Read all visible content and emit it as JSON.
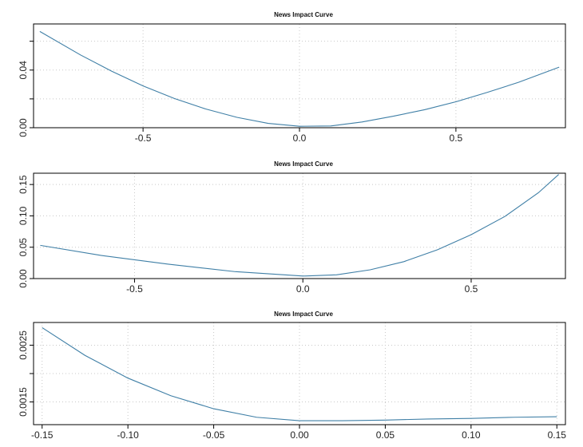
{
  "chart_data": [
    {
      "type": "line",
      "title": "News Impact Curve",
      "xlabel": "",
      "ylabel": "",
      "xlim": [
        -0.85,
        0.85
      ],
      "ylim": [
        0.0,
        0.072
      ],
      "xticks": [
        -0.5,
        0.0,
        0.5
      ],
      "xtick_labels": [
        "-0.5",
        "0.0",
        "0.5"
      ],
      "yticks": [
        0.0,
        0.02,
        0.04,
        0.06
      ],
      "ytick_labels": [
        "0.00",
        "",
        "0.04",
        ""
      ],
      "grid": true,
      "baseline": false,
      "series": [
        {
          "color": "#3f7fa6",
          "x": [
            -0.83,
            -0.7,
            -0.6,
            -0.5,
            -0.4,
            -0.3,
            -0.2,
            -0.1,
            0.0,
            0.1,
            0.2,
            0.3,
            0.4,
            0.5,
            0.6,
            0.7,
            0.83
          ],
          "y": [
            0.0668,
            0.0505,
            0.0392,
            0.029,
            0.0203,
            0.013,
            0.0072,
            0.003,
            0.001,
            0.0012,
            0.004,
            0.008,
            0.0125,
            0.018,
            0.0245,
            0.0315,
            0.042
          ]
        }
      ]
    },
    {
      "type": "line",
      "title": "News Impact Curve",
      "xlabel": "",
      "ylabel": "",
      "xlim": [
        -0.8,
        0.78
      ],
      "ylim": [
        0.0,
        0.168
      ],
      "xticks": [
        -0.5,
        0.0,
        0.5
      ],
      "xtick_labels": [
        "-0.5",
        "0.0",
        "0.5"
      ],
      "yticks": [
        0.0,
        0.05,
        0.1,
        0.15
      ],
      "ytick_labels": [
        "0.00",
        "0.05",
        "0.10",
        "0.15"
      ],
      "grid": true,
      "baseline": true,
      "series": [
        {
          "color": "#3f7fa6",
          "x": [
            -0.78,
            -0.6,
            -0.4,
            -0.2,
            0.0,
            0.1,
            0.2,
            0.3,
            0.4,
            0.5,
            0.6,
            0.7,
            0.76
          ],
          "y": [
            0.053,
            0.037,
            0.023,
            0.011,
            0.004,
            0.006,
            0.014,
            0.027,
            0.046,
            0.07,
            0.099,
            0.137,
            0.166
          ]
        }
      ]
    },
    {
      "type": "line",
      "title": "News Impact Curve",
      "xlabel": "",
      "ylabel": "",
      "xlim": [
        -0.155,
        0.155
      ],
      "ylim": [
        0.0011,
        0.0029
      ],
      "xticks": [
        -0.15,
        -0.1,
        -0.05,
        0.0,
        0.05,
        0.1,
        0.15
      ],
      "xtick_labels": [
        "-0.15",
        "-0.10",
        "-0.05",
        "0.00",
        "0.05",
        "0.10",
        "0.15"
      ],
      "yticks": [
        0.0015,
        0.002,
        0.0025
      ],
      "ytick_labels": [
        "0.0015",
        "",
        "0.0025"
      ],
      "grid": true,
      "baseline": false,
      "series": [
        {
          "color": "#3f7fa6",
          "x": [
            -0.15,
            -0.125,
            -0.1,
            -0.075,
            -0.05,
            -0.025,
            0.0,
            0.025,
            0.05,
            0.075,
            0.1,
            0.125,
            0.15
          ],
          "y": [
            0.00281,
            0.00232,
            0.00192,
            0.00161,
            0.00138,
            0.00123,
            0.00117,
            0.00117,
            0.00118,
            0.0012,
            0.00121,
            0.00123,
            0.00124
          ]
        }
      ]
    }
  ]
}
